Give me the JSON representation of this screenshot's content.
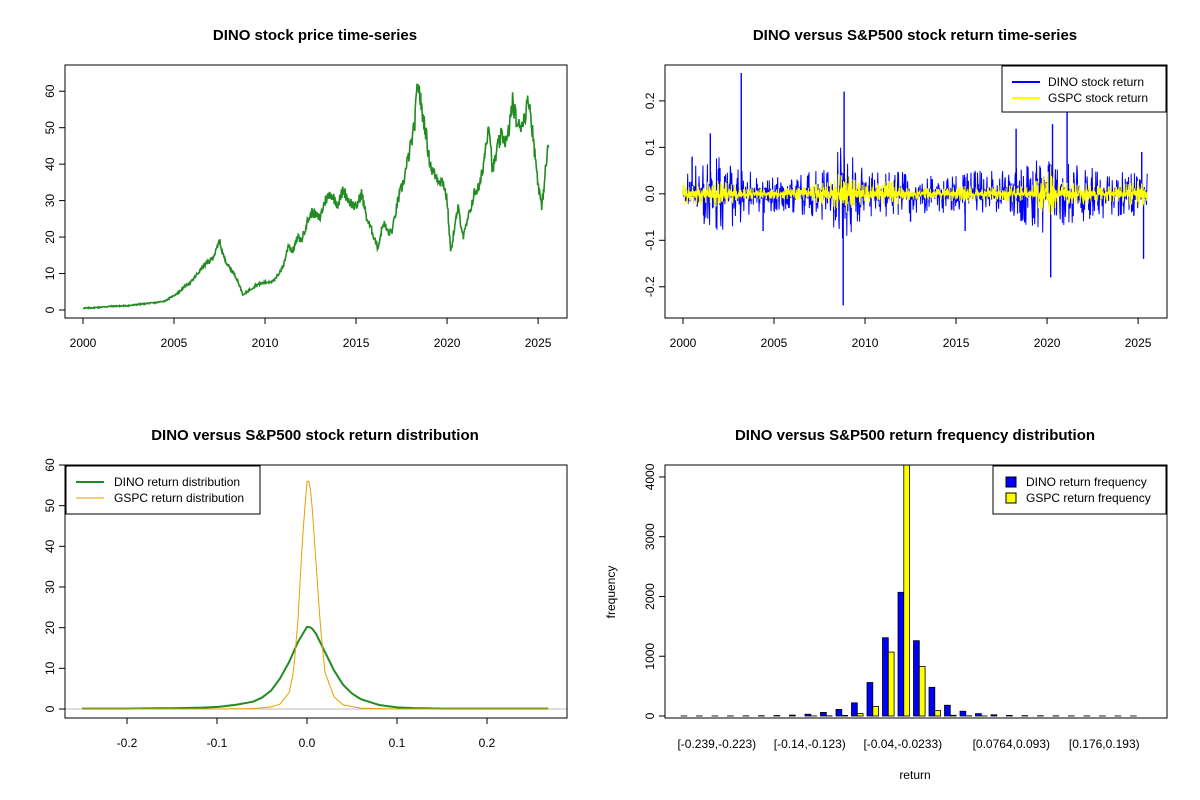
{
  "chart_data": [
    {
      "type": "line",
      "title": "DINO stock price time-series",
      "xlabel": "",
      "ylabel": "",
      "xlim": [
        2000,
        2025.6
      ],
      "ylim": [
        0,
        65
      ],
      "x_ticks": [
        2000,
        2005,
        2010,
        2015,
        2020,
        2025
      ],
      "y_ticks": [
        0,
        10,
        20,
        30,
        40,
        50,
        60
      ],
      "color": "#228B22",
      "series": [
        {
          "name": "DINO",
          "x": [
            2000.0,
            2000.5,
            2001.0,
            2001.5,
            2002.0,
            2002.5,
            2003.0,
            2003.5,
            2004.0,
            2004.5,
            2005.0,
            2005.3,
            2005.6,
            2006.0,
            2006.3,
            2006.6,
            2007.0,
            2007.3,
            2007.5,
            2007.7,
            2008.0,
            2008.3,
            2008.5,
            2008.8,
            2009.0,
            2009.3,
            2009.6,
            2010.0,
            2010.5,
            2011.0,
            2011.3,
            2011.5,
            2011.8,
            2012.0,
            2012.3,
            2012.6,
            2013.0,
            2013.3,
            2013.6,
            2014.0,
            2014.3,
            2014.6,
            2015.0,
            2015.3,
            2015.6,
            2016.0,
            2016.2,
            2016.5,
            2016.8,
            2017.0,
            2017.3,
            2017.6,
            2018.0,
            2018.2,
            2018.4,
            2018.6,
            2018.8,
            2019.0,
            2019.2,
            2019.5,
            2019.8,
            2020.0,
            2020.2,
            2020.4,
            2020.6,
            2020.9,
            2021.2,
            2021.5,
            2021.8,
            2022.0,
            2022.3,
            2022.5,
            2022.8,
            2023.0,
            2023.3,
            2023.6,
            2023.9,
            2024.2,
            2024.5,
            2024.8,
            2025.0,
            2025.2,
            2025.4,
            2025.6
          ],
          "values": [
            0.5,
            0.6,
            0.8,
            1.0,
            1.1,
            1.2,
            1.5,
            1.8,
            2.0,
            2.5,
            4.0,
            5.0,
            6.5,
            8.0,
            10.0,
            12.0,
            13.5,
            16.0,
            19.0,
            15.0,
            12.0,
            10.0,
            8.0,
            4.0,
            5.0,
            6.0,
            7.0,
            7.5,
            8.0,
            12.0,
            18.0,
            16.0,
            20.0,
            19.0,
            24.0,
            27.0,
            25.0,
            30.0,
            32.0,
            29.0,
            33.0,
            30.0,
            28.0,
            32.0,
            25.0,
            20.0,
            17.0,
            24.0,
            21.0,
            22.0,
            30.0,
            35.0,
            45.0,
            50.0,
            63.0,
            55.0,
            50.0,
            42.0,
            38.0,
            36.0,
            35.0,
            30.0,
            16.0,
            22.0,
            28.0,
            20.0,
            26.0,
            32.0,
            34.0,
            40.0,
            52.0,
            38.0,
            45.0,
            48.0,
            46.0,
            57.0,
            50.0,
            52.0,
            58.0,
            44.0,
            35.0,
            28.0,
            38.0,
            47.0
          ]
        }
      ]
    },
    {
      "type": "line",
      "title": "DINO versus S&P500 stock return time-series",
      "xlabel": "",
      "ylabel": "",
      "xlim": [
        2000,
        2025.6
      ],
      "ylim": [
        -0.25,
        0.26
      ],
      "x_ticks": [
        2000,
        2005,
        2010,
        2015,
        2020,
        2025
      ],
      "y_ticks": [
        -0.2,
        -0.1,
        0.0,
        0.1,
        0.2
      ],
      "legend": "top-right",
      "series": [
        {
          "name": "DINO stock return",
          "color": "#0000FF",
          "envelope": [
            [
              2000,
              0.04
            ],
            [
              2001,
              0.07
            ],
            [
              2002,
              0.08
            ],
            [
              2003,
              0.07
            ],
            [
              2004,
              0.05
            ],
            [
              2005,
              0.04
            ],
            [
              2006,
              0.04
            ],
            [
              2007,
              0.05
            ],
            [
              2008,
              0.06
            ],
            [
              2008.8,
              0.12
            ],
            [
              2009.3,
              0.08
            ],
            [
              2010,
              0.05
            ],
            [
              2012,
              0.05
            ],
            [
              2014,
              0.04
            ],
            [
              2016,
              0.05
            ],
            [
              2018,
              0.05
            ],
            [
              2020,
              0.09
            ],
            [
              2020.5,
              0.07
            ],
            [
              2022,
              0.06
            ],
            [
              2024,
              0.05
            ],
            [
              2025.5,
              0.05
            ]
          ],
          "spikes": [
            [
              2000.5,
              0.08
            ],
            [
              2001.5,
              0.13
            ],
            [
              2003.2,
              0.26
            ],
            [
              2004.4,
              -0.08
            ],
            [
              2008.85,
              0.22
            ],
            [
              2008.8,
              -0.24
            ],
            [
              2012.5,
              -0.06
            ],
            [
              2015.5,
              -0.08
            ],
            [
              2018.3,
              0.14
            ],
            [
              2020.2,
              -0.18
            ],
            [
              2020.3,
              0.15
            ],
            [
              2021.1,
              0.18
            ],
            [
              2025.3,
              -0.14
            ],
            [
              2025.2,
              0.09
            ]
          ]
        },
        {
          "name": "GSPC stock return",
          "color": "#FFFF00",
          "envelope": [
            [
              2000,
              0.025
            ],
            [
              2001,
              0.025
            ],
            [
              2002,
              0.03
            ],
            [
              2003,
              0.02
            ],
            [
              2004,
              0.012
            ],
            [
              2006,
              0.012
            ],
            [
              2007,
              0.018
            ],
            [
              2008,
              0.03
            ],
            [
              2008.8,
              0.05
            ],
            [
              2009.5,
              0.03
            ],
            [
              2010,
              0.02
            ],
            [
              2011.6,
              0.03
            ],
            [
              2012,
              0.015
            ],
            [
              2014,
              0.012
            ],
            [
              2015.6,
              0.02
            ],
            [
              2016,
              0.015
            ],
            [
              2018,
              0.02
            ],
            [
              2019,
              0.015
            ],
            [
              2020.2,
              0.06
            ],
            [
              2020.6,
              0.025
            ],
            [
              2022,
              0.025
            ],
            [
              2023,
              0.015
            ],
            [
              2025.3,
              0.03
            ],
            [
              2025.5,
              0.015
            ]
          ]
        }
      ]
    },
    {
      "type": "line",
      "title": "DINO versus S&P500 stock return distribution",
      "xlabel": "",
      "ylabel": "",
      "xlim": [
        -0.26,
        0.28
      ],
      "ylim": [
        0,
        60
      ],
      "x_ticks": [
        -0.2,
        -0.1,
        0.0,
        0.1,
        0.2
      ],
      "y_ticks": [
        0,
        10,
        20,
        30,
        40,
        50,
        60
      ],
      "legend": "top-left",
      "series": [
        {
          "name": "DINO return distribution",
          "color": "#228B22",
          "x": [
            -0.25,
            -0.2,
            -0.15,
            -0.12,
            -0.1,
            -0.08,
            -0.06,
            -0.05,
            -0.04,
            -0.03,
            -0.02,
            -0.01,
            0.0,
            0.005,
            0.01,
            0.02,
            0.03,
            0.04,
            0.05,
            0.06,
            0.08,
            0.1,
            0.12,
            0.15,
            0.2,
            0.27
          ],
          "values": [
            0.1,
            0.1,
            0.2,
            0.3,
            0.5,
            1.0,
            1.8,
            2.8,
            4.5,
            7.5,
            11.5,
            16.5,
            20.2,
            20.0,
            18.5,
            14.0,
            9.5,
            6.0,
            3.8,
            2.4,
            1.0,
            0.4,
            0.2,
            0.1,
            0.1,
            0.1
          ]
        },
        {
          "name": "GSPC return distribution",
          "color": "#E69F00",
          "x": [
            -0.25,
            -0.1,
            -0.06,
            -0.04,
            -0.03,
            -0.02,
            -0.015,
            -0.01,
            -0.005,
            0.0,
            0.0025,
            0.005,
            0.01,
            0.015,
            0.02,
            0.03,
            0.04,
            0.06,
            0.1,
            0.27
          ],
          "values": [
            0.0,
            0.0,
            0.1,
            0.5,
            1.2,
            4.0,
            9.0,
            22.0,
            42.0,
            56.0,
            56.0,
            52.0,
            36.0,
            20.0,
            9.0,
            3.0,
            1.0,
            0.2,
            0.0,
            0.0
          ]
        }
      ]
    },
    {
      "type": "bar",
      "title": "DINO versus S&P500 return frequency distribution",
      "xlabel": "return",
      "ylabel": "frequency",
      "ylim": [
        0,
        4200
      ],
      "y_ticks": [
        0,
        1000,
        2000,
        3000,
        4000
      ],
      "x_tick_labels": [
        "[-0.239,-0.223)",
        "[-0.14,-0.123)",
        "[-0.04,-0.0233)",
        "[0.0764,0.093)",
        "[0.176,0.193)"
      ],
      "x_tick_bins": [
        0,
        6,
        12,
        19,
        25
      ],
      "legend": "top-right",
      "series": [
        {
          "name": "DINO return frequency",
          "color": "#0000FF",
          "values": [
            1,
            1,
            1,
            2,
            3,
            5,
            8,
            15,
            30,
            60,
            110,
            220,
            560,
            1310,
            2070,
            1260,
            480,
            180,
            80,
            40,
            20,
            10,
            6,
            4,
            3,
            2,
            2,
            1,
            1,
            1
          ]
        },
        {
          "name": "GSPC return frequency",
          "color": "#FFFF00",
          "values": [
            0,
            0,
            0,
            0,
            0,
            0,
            0,
            0,
            1,
            3,
            10,
            40,
            160,
            1070,
            4200,
            830,
            90,
            12,
            3,
            1,
            0,
            0,
            0,
            0,
            0,
            0,
            0,
            0,
            0,
            0
          ]
        }
      ]
    }
  ]
}
